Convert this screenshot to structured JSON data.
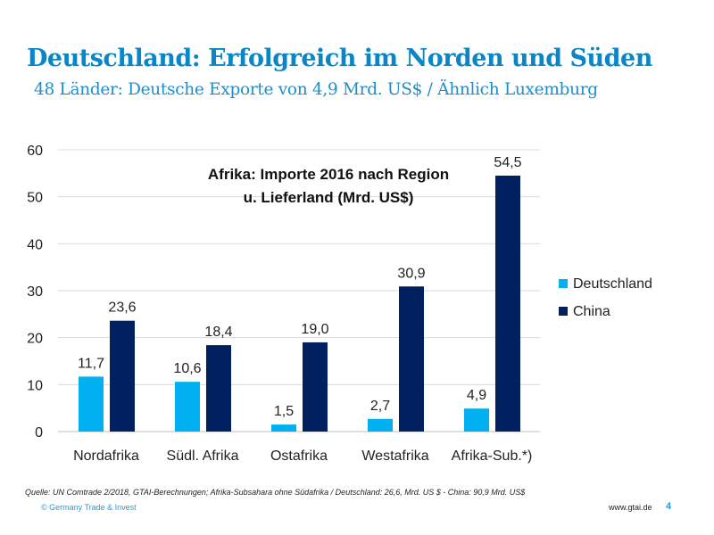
{
  "header": {
    "title": "Deutschland: Erfolgreich im Norden und Süden",
    "subtitle": "48 Länder: Deutsche Exporte von 4,9 Mrd. US$ / Ähnlich Luxemburg"
  },
  "chart_data": {
    "type": "bar",
    "title": "Afrika: Importe 2016 nach Region u. Lieferland (Mrd. US$)",
    "title_lines": [
      "Afrika: Importe 2016 nach Region",
      "u. Lieferland (Mrd. US$)"
    ],
    "categories": [
      "Nordafrika",
      "Südl. Afrika",
      "Ostafrika",
      "Westafrika",
      "Afrika-Sub.*)"
    ],
    "series": [
      {
        "name": "Deutschland",
        "color": "#00b0f0",
        "values": [
          11.7,
          10.6,
          1.5,
          2.7,
          4.9
        ],
        "labels": [
          "11,7",
          "10,6",
          "1,5",
          "2,7",
          "4,9"
        ]
      },
      {
        "name": "China",
        "color": "#002060",
        "values": [
          23.6,
          18.4,
          19.0,
          30.9,
          54.5
        ],
        "labels": [
          "23,6",
          "18,4",
          "19,0",
          "30,9",
          "54,5"
        ]
      }
    ],
    "ylim": [
      0,
      60
    ],
    "yticks": [
      "0",
      "10",
      "20",
      "30",
      "40",
      "50",
      "60"
    ],
    "grid": true,
    "legend": "right"
  },
  "footer": {
    "source": "Quelle: UN Comtrade 2/2018, GTAI-Berechnungen; Afrika-Subsahara ohne Südafrika / Deutschland: 26,6, Mrd. US $ - China: 90,9 Mrd. US$",
    "copyright": "© Germany Trade & Invest",
    "website": "www.gtai.de",
    "page": "4"
  }
}
